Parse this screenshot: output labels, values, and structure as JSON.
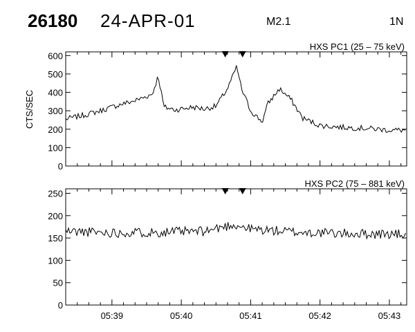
{
  "header": {
    "event_id": "26180",
    "date": "24-APR-01",
    "flare_class": "M2.1",
    "location": "1N"
  },
  "ylabel": "CTS/SEC",
  "chart_data": [
    {
      "type": "line",
      "title": "HXS PC1 (25 – 75 keV)",
      "ylabel": "CTS/SEC",
      "ylim": [
        0,
        620
      ],
      "yticks": [
        0,
        100,
        200,
        300,
        400,
        500,
        600
      ],
      "x_time_range": [
        "05:38:20",
        "05:43:15"
      ],
      "xtick_labels": [
        "05:39",
        "05:40",
        "05:41",
        "05:42",
        "05:43"
      ],
      "markers_time": [
        "05:40:38",
        "05:40:53"
      ],
      "series": [
        {
          "x": [
            "05:38:20",
            "05:38:35",
            "05:38:50",
            "05:39:05",
            "05:39:20",
            "05:39:35",
            "05:39:40",
            "05:39:45",
            "05:39:55",
            "05:40:10",
            "05:40:20",
            "05:40:30",
            "05:40:40",
            "05:40:48",
            "05:40:52",
            "05:41:00",
            "05:41:10",
            "05:41:15",
            "05:41:25",
            "05:41:35",
            "05:41:45",
            "05:42:00",
            "05:42:20",
            "05:42:40",
            "05:43:00",
            "05:43:15"
          ],
          "values": [
            255,
            275,
            300,
            330,
            355,
            390,
            490,
            320,
            305,
            320,
            310,
            325,
            420,
            540,
            420,
            300,
            240,
            340,
            420,
            360,
            260,
            220,
            210,
            205,
            195,
            195
          ]
        }
      ]
    },
    {
      "type": "line",
      "title": "HXS PC2 (75 – 881 keV)",
      "ylim": [
        0,
        260
      ],
      "yticks": [
        0,
        50,
        100,
        150,
        200,
        250
      ],
      "x_time_range": [
        "05:38:20",
        "05:43:15"
      ],
      "xtick_labels": [
        "05:39",
        "05:40",
        "05:41",
        "05:42",
        "05:43"
      ],
      "markers_time": [
        "05:40:38",
        "05:40:53"
      ],
      "series": [
        {
          "x": [
            "05:38:20",
            "05:39:00",
            "05:39:40",
            "05:40:20",
            "05:40:45",
            "05:41:00",
            "05:41:40",
            "05:42:20",
            "05:43:15"
          ],
          "values": [
            165,
            162,
            163,
            165,
            180,
            170,
            163,
            160,
            158
          ]
        }
      ]
    }
  ]
}
